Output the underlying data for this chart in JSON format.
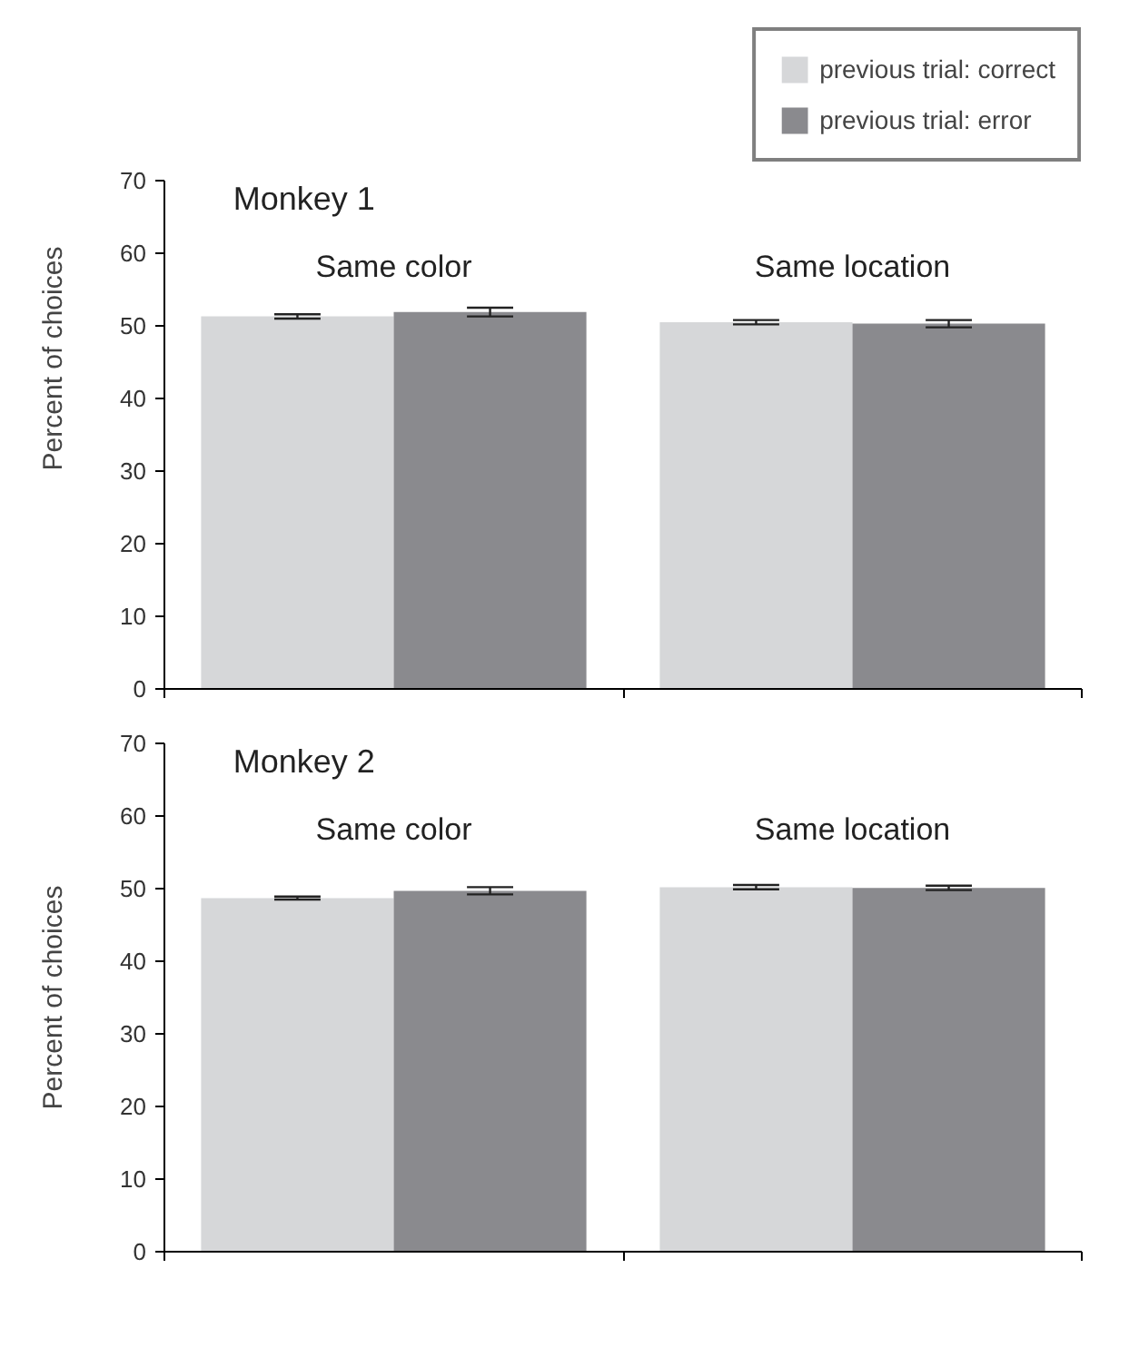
{
  "chart_data": [
    {
      "type": "bar",
      "title": "Monkey 1",
      "ylabel": "Percent of choices",
      "categories": [
        "Same color",
        "Same location"
      ],
      "ylim": [
        0,
        70
      ],
      "yticks": [
        0,
        10,
        20,
        30,
        40,
        50,
        60,
        70
      ],
      "grid": false,
      "legend": "top right",
      "series": [
        {
          "name": "previous trial: correct",
          "color": "#d6d7d9",
          "values": [
            51.3,
            50.5
          ],
          "errors": [
            0.3,
            0.3
          ]
        },
        {
          "name": "previous trial: error",
          "color": "#8a8a8e",
          "values": [
            51.9,
            50.3
          ],
          "errors": [
            0.6,
            0.5
          ]
        }
      ]
    },
    {
      "type": "bar",
      "title": "Monkey 2",
      "ylabel": "Percent of choices",
      "categories": [
        "Same color",
        "Same location"
      ],
      "ylim": [
        0,
        70
      ],
      "yticks": [
        0,
        10,
        20,
        30,
        40,
        50,
        60,
        70
      ],
      "grid": false,
      "legend": false,
      "series": [
        {
          "color": "#d6d7d9",
          "values": [
            48.7,
            50.2
          ],
          "errors": [
            0.2,
            0.3
          ]
        },
        {
          "color": "#8a8a8e",
          "values": [
            49.7,
            50.1
          ],
          "errors": [
            0.5,
            0.3
          ]
        }
      ]
    }
  ]
}
